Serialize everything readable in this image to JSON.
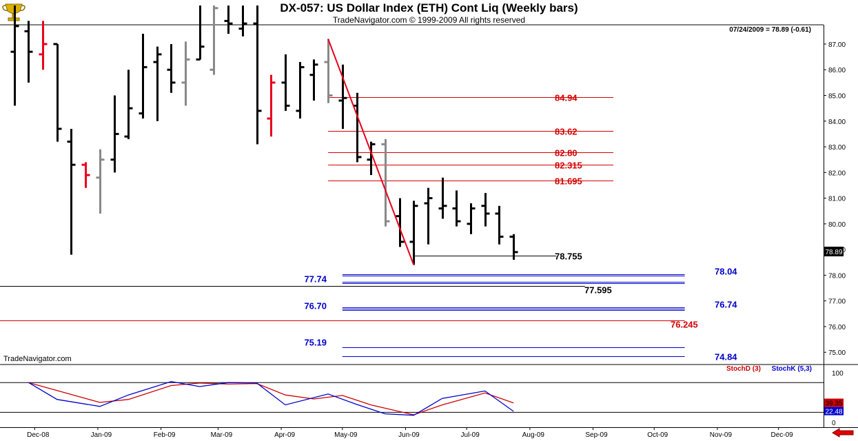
{
  "window": {
    "title": "DX-057:  US Dollar Index (ETH) Cont Liq  (Weekly bars)",
    "copyright": "TradeNavigator.com © 1999-2009 All rights reserved",
    "watermark": "TradeNavigator.com",
    "last_quote": "07/24/2009 = 78.89 (-0.61)",
    "price_tag": "78.89"
  },
  "colors": {
    "background": "#ffffff",
    "bar_black": "#000000",
    "bar_red": "#e8001a",
    "bar_gray": "#888888",
    "bar_green": "#00c800",
    "fib_red": "#d40000",
    "fib_blue": "#0000cc",
    "stochD": "#cc0000",
    "stochK": "#0000cc"
  },
  "chart_data": [
    {
      "type": "bar",
      "subtype": "ohlc",
      "title": "DX-057:  US Dollar Index (ETH) Cont Liq  (Weekly bars)",
      "x_ticks": [
        "Dec-08",
        "Jan-09",
        "Feb-09",
        "Mar-09",
        "Apr-09",
        "May-09",
        "Jun-09",
        "Jul-09",
        "Aug-09",
        "Sep-09",
        "Oct-09",
        "Nov-09",
        "Dec-09"
      ],
      "y_ticks": [
        "75.00",
        "76.00",
        "77.00",
        "78.00",
        "79.00",
        "80.00",
        "81.00",
        "82.00",
        "83.00",
        "84.00",
        "85.00",
        "86.00",
        "87.00"
      ],
      "ylim": [
        74.55,
        87.75
      ],
      "bars": [
        {
          "week": "2008-11-21",
          "open": 86.7,
          "high": 88.5,
          "low": 84.6,
          "close": 87.7,
          "color": "black"
        },
        {
          "week": "2008-11-28",
          "open": 87.5,
          "high": 87.9,
          "low": 85.5,
          "close": 86.7,
          "color": "black"
        },
        {
          "week": "2008-12-05",
          "open": 86.6,
          "high": 87.9,
          "low": 86.0,
          "close": 87.0,
          "color": "red"
        },
        {
          "week": "2008-12-12",
          "open": 87.0,
          "high": 87.0,
          "low": 83.2,
          "close": 83.7,
          "color": "black"
        },
        {
          "week": "2008-12-19",
          "open": 83.2,
          "high": 83.7,
          "low": 78.8,
          "close": 82.3,
          "color": "black"
        },
        {
          "week": "2008-12-26",
          "open": 82.3,
          "high": 82.4,
          "low": 81.4,
          "close": 81.9,
          "color": "red"
        },
        {
          "week": "2009-01-02",
          "open": 81.8,
          "high": 82.9,
          "low": 80.4,
          "close": 82.5,
          "color": "gray"
        },
        {
          "week": "2009-01-09",
          "open": 82.5,
          "high": 85.0,
          "low": 82.0,
          "close": 83.5,
          "color": "black"
        },
        {
          "week": "2009-01-16",
          "open": 83.4,
          "high": 86.0,
          "low": 83.3,
          "close": 84.5,
          "color": "black"
        },
        {
          "week": "2009-01-23",
          "open": 84.3,
          "high": 87.4,
          "low": 84.1,
          "close": 86.1,
          "color": "black"
        },
        {
          "week": "2009-01-30",
          "open": 86.3,
          "high": 86.9,
          "low": 84.0,
          "close": 86.6,
          "color": "black"
        },
        {
          "week": "2009-02-06",
          "open": 86.0,
          "high": 87.0,
          "low": 85.1,
          "close": 85.5,
          "color": "black"
        },
        {
          "week": "2009-02-13",
          "open": 85.5,
          "high": 87.1,
          "low": 84.6,
          "close": 86.4,
          "color": "gray"
        },
        {
          "week": "2009-02-20",
          "open": 86.4,
          "high": 88.5,
          "low": 86.4,
          "close": 86.9,
          "color": "black"
        },
        {
          "week": "2009-02-27",
          "open": 86.0,
          "high": 88.5,
          "low": 85.8,
          "close": 88.4,
          "color": "gray"
        },
        {
          "week": "2009-03-06",
          "open": 87.9,
          "high": 88.5,
          "low": 87.4,
          "close": 87.8,
          "color": "black"
        },
        {
          "week": "2009-03-13",
          "open": 87.6,
          "high": 88.5,
          "low": 87.3,
          "close": 87.8,
          "color": "black"
        },
        {
          "week": "2009-03-20",
          "open": 87.8,
          "high": 88.5,
          "low": 83.1,
          "close": 84.4,
          "color": "black"
        },
        {
          "week": "2009-03-27",
          "open": 84.1,
          "high": 85.8,
          "low": 83.4,
          "close": 85.5,
          "color": "red"
        },
        {
          "week": "2009-04-03",
          "open": 85.5,
          "high": 86.6,
          "low": 84.4,
          "close": 84.6,
          "color": "black"
        },
        {
          "week": "2009-04-10",
          "open": 84.4,
          "high": 86.3,
          "low": 84.1,
          "close": 86.1,
          "color": "black"
        },
        {
          "week": "2009-04-17",
          "open": 85.8,
          "high": 86.4,
          "low": 84.8,
          "close": 86.2,
          "color": "black"
        },
        {
          "week": "2009-04-24",
          "open": 86.3,
          "high": 87.2,
          "low": 84.7,
          "close": 85.0,
          "color": "gray"
        },
        {
          "week": "2009-05-01",
          "open": 84.8,
          "high": 86.2,
          "low": 83.7,
          "close": 84.9,
          "color": "black"
        },
        {
          "week": "2009-05-08",
          "open": 84.6,
          "high": 85.1,
          "low": 82.4,
          "close": 82.6,
          "color": "black"
        },
        {
          "week": "2009-05-15",
          "open": 82.5,
          "high": 83.2,
          "low": 81.9,
          "close": 83.1,
          "color": "black"
        },
        {
          "week": "2009-05-22",
          "open": 83.1,
          "high": 83.3,
          "low": 79.9,
          "close": 80.1,
          "color": "gray"
        },
        {
          "week": "2009-05-29",
          "open": 80.3,
          "high": 81.0,
          "low": 79.1,
          "close": 79.3,
          "color": "black"
        },
        {
          "week": "2009-06-05",
          "open": 79.3,
          "high": 80.9,
          "low": 78.4,
          "close": 80.7,
          "color": "black"
        },
        {
          "week": "2009-06-12",
          "open": 80.8,
          "high": 81.4,
          "low": 79.2,
          "close": 81.0,
          "color": "black"
        },
        {
          "week": "2009-06-19",
          "open": 80.6,
          "high": 81.8,
          "low": 80.2,
          "close": 80.7,
          "color": "black"
        },
        {
          "week": "2009-06-26",
          "open": 80.6,
          "high": 81.3,
          "low": 79.9,
          "close": 80.1,
          "color": "black"
        },
        {
          "week": "2009-07-03",
          "open": 80.0,
          "high": 80.8,
          "low": 79.6,
          "close": 80.6,
          "color": "black"
        },
        {
          "week": "2009-07-10",
          "open": 80.7,
          "high": 81.2,
          "low": 79.9,
          "close": 80.4,
          "color": "black"
        },
        {
          "week": "2009-07-17",
          "open": 80.4,
          "high": 80.7,
          "low": 79.2,
          "close": 79.5,
          "color": "black"
        },
        {
          "week": "2009-07-24",
          "open": 79.5,
          "high": 79.6,
          "low": 78.6,
          "close": 78.9,
          "color": "black"
        }
      ],
      "trendline": {
        "from": {
          "week": "2009-04-24",
          "value": 87.2
        },
        "to": {
          "week": "2009-06-05",
          "value": 78.4
        }
      },
      "fib_levels": [
        {
          "label": "84.94",
          "value": 84.94,
          "color": "red",
          "from": "2009-04-24",
          "to": "2009-09-11"
        },
        {
          "label": "83.62",
          "value": 83.62,
          "color": "red",
          "from": "2009-04-24",
          "to": "2009-09-11"
        },
        {
          "label": "82.80",
          "value": 82.8,
          "color": "red",
          "from": "2009-04-24",
          "to": "2009-09-11"
        },
        {
          "label": "82.315",
          "value": 82.315,
          "color": "red",
          "from": "2009-04-24",
          "to": "2009-09-11"
        },
        {
          "label": "81.695",
          "value": 81.695,
          "color": "red",
          "from": "2009-04-24",
          "to": "2009-09-11"
        },
        {
          "label": "78.755",
          "value": 78.755,
          "color": "black",
          "from": "2009-06-05",
          "to": "2009-08-14"
        },
        {
          "label": "78.04",
          "value": 78.04,
          "color": "blue",
          "from": "2009-05-01",
          "to": "2009-10-16"
        },
        {
          "label": "77.74",
          "value": 77.74,
          "color": "blue",
          "from": "2009-05-01",
          "to": "2009-10-16"
        },
        {
          "label": "77.595",
          "value": 77.595,
          "color": "black",
          "from": "start",
          "to": "2009-08-28"
        },
        {
          "label": "76.74",
          "value": 76.74,
          "color": "blue",
          "from": "2009-05-01",
          "to": "2009-10-16"
        },
        {
          "label": "76.70",
          "value": 76.7,
          "color": "blue",
          "from": "2009-05-01",
          "to": "2009-10-16"
        },
        {
          "label": "76.245",
          "value": 76.245,
          "color": "red",
          "from": "start",
          "to": "2009-10-16"
        },
        {
          "label": "75.19",
          "value": 75.19,
          "color": "blue",
          "from": "2009-05-01",
          "to": "2009-10-16"
        },
        {
          "label": "74.84",
          "value": 74.84,
          "color": "blue",
          "from": "2009-05-01",
          "to": "2009-10-16"
        }
      ]
    },
    {
      "type": "line",
      "subtype": "stochastic",
      "y_ticks": [
        "0",
        "100"
      ],
      "ylim": [
        -10,
        115
      ],
      "reference_lines": [
        20,
        80
      ],
      "legend": [
        "StochD (3)",
        "StochK (5,3)"
      ],
      "legend_position": "top-right",
      "last_values": {
        "StochD": "39.35",
        "StochK": "22.48"
      },
      "series": [
        {
          "name": "StochD (3)",
          "color": "red",
          "values": [
            {
              "week": "2008-11-28",
              "v": 80
            },
            {
              "week": "2008-12-19",
              "v": 56
            },
            {
              "week": "2009-01-02",
              "v": 40
            },
            {
              "week": "2009-01-16",
              "v": 46
            },
            {
              "week": "2009-02-06",
              "v": 74
            },
            {
              "week": "2009-02-20",
              "v": 79
            },
            {
              "week": "2009-03-06",
              "v": 77
            },
            {
              "week": "2009-03-20",
              "v": 78
            },
            {
              "week": "2009-04-03",
              "v": 55
            },
            {
              "week": "2009-04-17",
              "v": 47
            },
            {
              "week": "2009-05-01",
              "v": 54
            },
            {
              "week": "2009-05-15",
              "v": 35
            },
            {
              "week": "2009-06-05",
              "v": 15
            },
            {
              "week": "2009-06-19",
              "v": 35
            },
            {
              "week": "2009-07-10",
              "v": 59
            },
            {
              "week": "2009-07-24",
              "v": 39
            }
          ]
        },
        {
          "name": "StochK (5,3)",
          "color": "blue",
          "values": [
            {
              "week": "2008-11-28",
              "v": 80
            },
            {
              "week": "2008-12-12",
              "v": 46
            },
            {
              "week": "2009-01-02",
              "v": 32
            },
            {
              "week": "2009-01-16",
              "v": 55
            },
            {
              "week": "2009-02-06",
              "v": 82
            },
            {
              "week": "2009-02-20",
              "v": 72
            },
            {
              "week": "2009-03-06",
              "v": 80
            },
            {
              "week": "2009-03-20",
              "v": 79
            },
            {
              "week": "2009-04-03",
              "v": 35
            },
            {
              "week": "2009-04-24",
              "v": 57
            },
            {
              "week": "2009-05-08",
              "v": 36
            },
            {
              "week": "2009-05-22",
              "v": 17
            },
            {
              "week": "2009-06-05",
              "v": 14
            },
            {
              "week": "2009-06-19",
              "v": 48
            },
            {
              "week": "2009-07-10",
              "v": 63
            },
            {
              "week": "2009-07-24",
              "v": 22
            }
          ]
        }
      ]
    }
  ]
}
